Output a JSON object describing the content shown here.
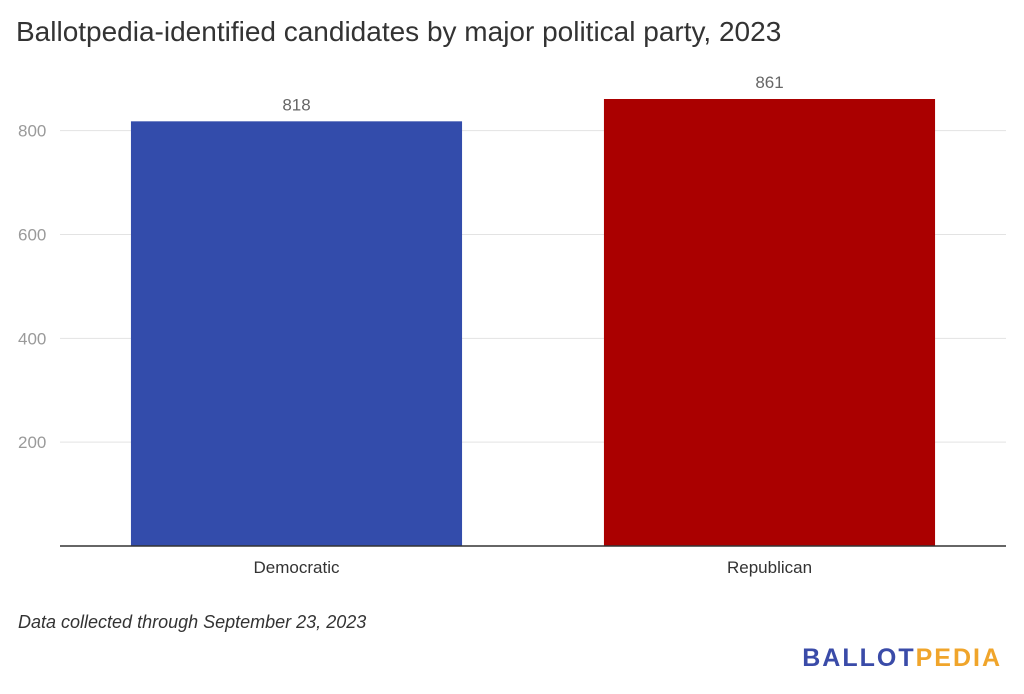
{
  "chart_data": {
    "type": "bar",
    "title": "Ballotpedia-identified candidates by major political party, 2023",
    "categories": [
      "Democratic",
      "Republican"
    ],
    "values": [
      818,
      861
    ],
    "colors": [
      "#334CAB",
      "#AA0000"
    ],
    "data_labels": [
      "818",
      "861"
    ],
    "yticks": [
      200,
      400,
      600,
      800
    ],
    "ytick_labels": [
      "200",
      "400",
      "600",
      "800"
    ],
    "ylim": [
      0,
      861
    ],
    "xlabel": "",
    "ylabel": "",
    "grid": true,
    "legend": "none"
  },
  "footnote": "Data collected through September 23, 2023",
  "logo": {
    "part1": "BALLOT",
    "part2": "PEDIA",
    "color1": "#3A4BA8",
    "color2": "#F0A52B"
  }
}
